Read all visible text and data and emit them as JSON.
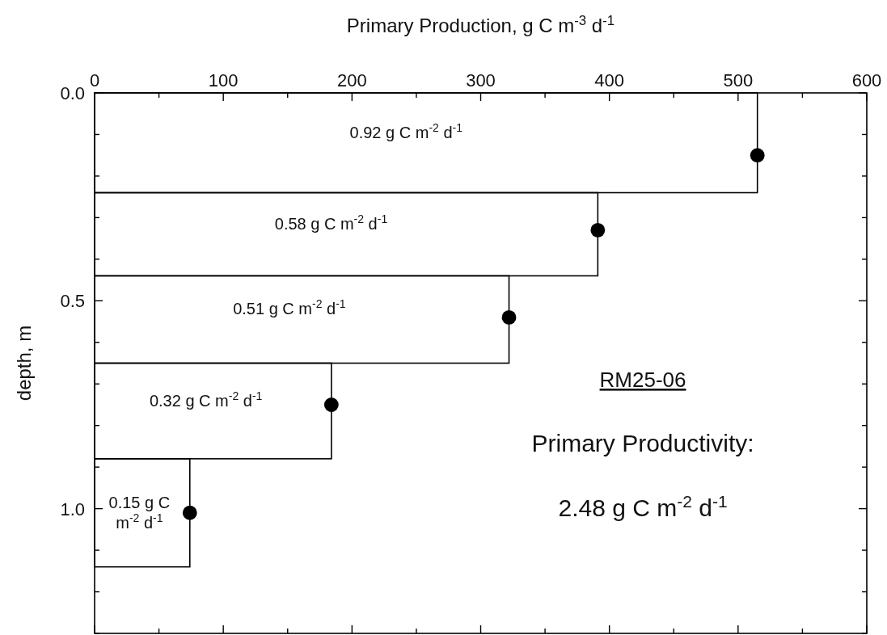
{
  "chart_data": {
    "type": "histogram",
    "orientation": "horizontal",
    "xlabel": "Primary Production, g C m$^{-3}$ d$^{-1}$",
    "ylabel": "depth, m",
    "xlim": [
      0,
      600
    ],
    "xticks": [
      0,
      {
        "value": 50,
        "label": null
      },
      100,
      {
        "value": 150,
        "label": null
      },
      200,
      {
        "value": 250,
        "label": null
      },
      300,
      {
        "value": 350,
        "label": null
      },
      400,
      {
        "value": 450,
        "label": null
      },
      500,
      {
        "value": 550,
        "label": null
      },
      600
    ],
    "ylim": [
      1.3,
      0
    ],
    "yticks": [
      {
        "value": 0,
        "label": "0.0"
      },
      {
        "value": 0.1,
        "label": null
      },
      {
        "value": 0.2,
        "label": null
      },
      {
        "value": 0.3,
        "label": null
      },
      {
        "value": 0.4,
        "label": null
      },
      {
        "value": 0.5,
        "label": "0.5"
      },
      {
        "value": 0.6,
        "label": null
      },
      {
        "value": 0.7,
        "label": null
      },
      {
        "value": 0.8,
        "label": null
      },
      {
        "value": 0.9,
        "label": null
      },
      {
        "value": 1.0,
        "label": "1.0"
      },
      {
        "value": 1.1,
        "label": null
      },
      {
        "value": 1.2,
        "label": null
      },
      {
        "value": 1.3,
        "label": null
      }
    ],
    "series": [
      {
        "color": "#000000",
        "bins": [
          0,
          0.24,
          0.44,
          0.65,
          0.88,
          1.14
        ],
        "values": [
          515,
          391,
          322,
          184,
          74
        ]
      },
      {
        "type": "scatter",
        "color": "#000000",
        "marker": "circle",
        "x": [
          0.15,
          0.33,
          0.54,
          0.75,
          1.01
        ],
        "values": [
          515,
          391,
          322,
          184,
          74
        ]
      }
    ],
    "annotations": [
      "0.92 g C m$^{-2}$ d$^{-1}$",
      "0.58 g C m$^{-2}$ d$^{-1}$",
      "0.51 g C m$^{-2}$ d$^{-1}$",
      "0.32 g C m$^{-2}$ d$^{-1}$",
      "0.15 g C\nm$^{-2}$ d$^{-1}$",
      "RM25-06",
      "Primary Productivity:",
      "2.48 g C m$^{-2}$ d$^{-1}$"
    ]
  }
}
